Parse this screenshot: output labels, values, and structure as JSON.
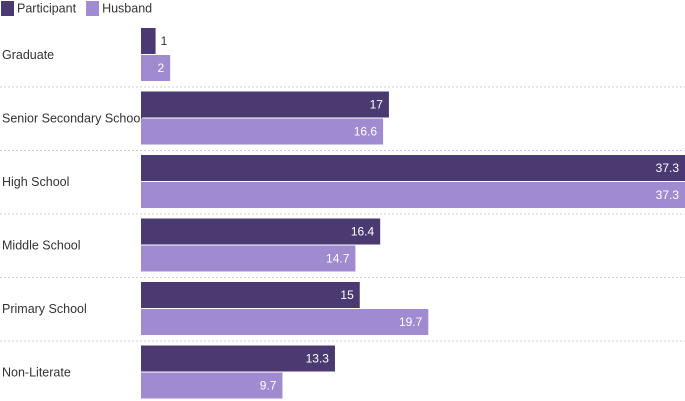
{
  "chart_data": {
    "type": "bar",
    "orientation": "horizontal",
    "categories": [
      "Graduate",
      "Senior Secondary School",
      "High School",
      "Middle School",
      "Primary School",
      "Non-Literate"
    ],
    "series": [
      {
        "name": "Participant",
        "color": "#4b3a72",
        "values": [
          1,
          17,
          37.3,
          16.4,
          15,
          13.3
        ]
      },
      {
        "name": "Husband",
        "color": "#a08bd0",
        "values": [
          2,
          16.6,
          37.3,
          14.7,
          19.7,
          9.7
        ]
      }
    ],
    "xlim": [
      0,
      37.3
    ],
    "legend": "top-left",
    "grid": false
  }
}
